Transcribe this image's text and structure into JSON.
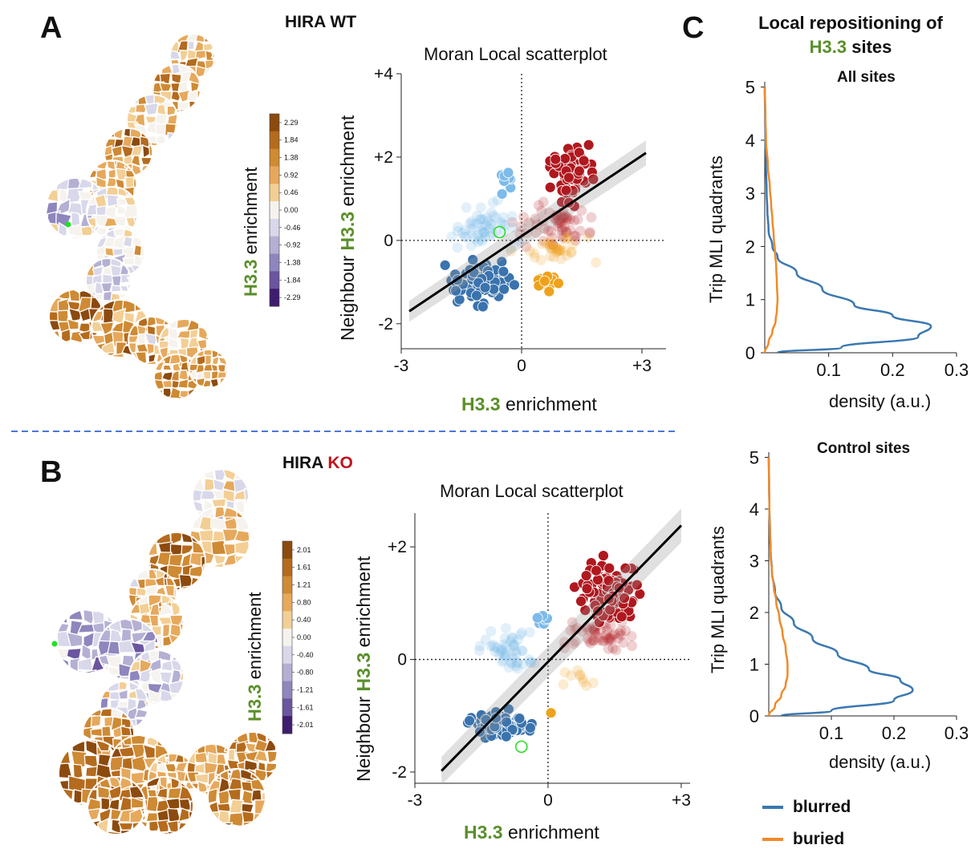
{
  "panels": {
    "A": {
      "letter": "A",
      "condition": "HIRA WT"
    },
    "B": {
      "letter": "B",
      "condition_prefix": "HIRA ",
      "condition_suffix": "KO"
    },
    "C": {
      "letter": "C",
      "title_line1": "Local repositioning of",
      "title_h33": "H3.3",
      "title_rest": " sites"
    }
  },
  "colorbar_A": {
    "title_h33": "H3.3",
    "title_rest": " enrichment",
    "ticks": [
      "2.29",
      "1.84",
      "1.38",
      "0.92",
      "0.46",
      "0.00",
      "-0.46",
      "-0.92",
      "-1.38",
      "-1.84",
      "-2.29"
    ],
    "colors": [
      "#8c4a0e",
      "#b56b1d",
      "#cf8a34",
      "#e6a95c",
      "#f3cf95",
      "#f6f2ee",
      "#d8d8ea",
      "#b4b0d4",
      "#8e86bd",
      "#6a559f",
      "#3f1d6e"
    ]
  },
  "colorbar_B": {
    "title_h33": "H3.3",
    "title_rest": " enrichment",
    "ticks": [
      "2.01",
      "1.61",
      "1.21",
      "0.80",
      "0.40",
      "0.00",
      "-0.40",
      "-0.80",
      "-1.21",
      "-1.61",
      "-2.01"
    ],
    "colors": [
      "#8c4a0e",
      "#b56b1d",
      "#cf8a34",
      "#e6a95c",
      "#f3cf95",
      "#f6f2ee",
      "#d8d8ea",
      "#b4b0d4",
      "#8e86bd",
      "#6a559f",
      "#3f1d6e"
    ]
  },
  "scatter_labels": {
    "title": "Moran Local scatterplot",
    "xlabel_h33": "H3.3",
    "xlabel_rest": " enrichment",
    "ylabel_pre": "Neighbour ",
    "ylabel_h33": "H3.3",
    "ylabel_rest": " enrichment"
  },
  "density_labels": {
    "ylabel": "Trip MLI quadrants",
    "xlabel": "density (a.u.)",
    "title_all": "All sites",
    "title_control": "Control sites",
    "legend_blurred": "blurred",
    "legend_buried": "buried"
  },
  "colors": {
    "hh": "#b0181f",
    "ll": "#3a73ad",
    "lh": "#7dbbea",
    "hl": "#eea21c",
    "blurred": "#3a78b0",
    "buried": "#f08a2a",
    "green": "#5a8f2a"
  },
  "chart_data": [
    {
      "type": "scatter",
      "title": "Moran Local scatterplot",
      "xlabel": "H3.3 enrichment",
      "ylabel": "Neighbour H3.3 enrichment",
      "xticks": [
        "-3",
        "0",
        "+3"
      ],
      "yticks": [
        "-2",
        "0",
        "+2",
        "+4"
      ],
      "xlim": [
        -3,
        3.6
      ],
      "ylim": [
        -2.6,
        4
      ],
      "regression": {
        "x": [
          -2.8,
          3.1
        ],
        "y": [
          -1.7,
          2.1
        ]
      },
      "highlight": {
        "x": -0.55,
        "y": 0.2
      }
    },
    {
      "type": "scatter",
      "title": "Moran Local scatterplot",
      "xlabel": "H3.3 enrichment",
      "ylabel": "Neighbour H3.3 enrichment",
      "xticks": [
        "-3",
        "0",
        "+3"
      ],
      "yticks": [
        "-2",
        "0",
        "+2"
      ],
      "xlim": [
        -3,
        3.2
      ],
      "ylim": [
        -2.2,
        2.6
      ],
      "regression": {
        "x": [
          -2.4,
          3.0
        ],
        "y": [
          -1.98,
          2.38
        ]
      },
      "highlight": {
        "x": -0.6,
        "y": -1.55
      }
    },
    {
      "type": "line",
      "title": "All sites",
      "xlabel": "density (a.u.)",
      "ylabel": "Trip MLI quadrants",
      "xticks": [
        "0.1",
        "0.2",
        "0.3"
      ],
      "yticks": [
        "0",
        "1",
        "2",
        "3",
        "4",
        "5"
      ],
      "xlim": [
        0,
        0.3
      ],
      "ylim": [
        0,
        5.1
      ],
      "series": [
        {
          "name": "blurred",
          "y": [
            0.0,
            0.1,
            0.3,
            0.5,
            0.7,
            0.9,
            1.2,
            1.5,
            1.8,
            2.0,
            2.3,
            2.7,
            3.0,
            3.5,
            4.0,
            4.5,
            5.0
          ],
          "x": [
            0.02,
            0.12,
            0.24,
            0.26,
            0.2,
            0.14,
            0.09,
            0.05,
            0.02,
            0.012,
            0.006,
            0.004,
            0.003,
            0.002,
            0.001,
            0.0005,
            0.0
          ]
        },
        {
          "name": "buried",
          "y": [
            0.0,
            0.2,
            0.4,
            0.6,
            0.8,
            1.0,
            1.3,
            1.6,
            1.9,
            2.2,
            2.5,
            2.8,
            3.1,
            3.5,
            4.0,
            4.5,
            5.0
          ],
          "x": [
            0.0,
            0.006,
            0.012,
            0.017,
            0.019,
            0.02,
            0.019,
            0.018,
            0.016,
            0.014,
            0.012,
            0.01,
            0.008,
            0.005,
            0.002,
            0.001,
            0.0
          ]
        }
      ]
    },
    {
      "type": "line",
      "title": "Control sites",
      "xlabel": "density (a.u.)",
      "ylabel": "Trip MLI quadrants",
      "xticks": [
        "0.1",
        "0.2",
        "0.3"
      ],
      "yticks": [
        "0",
        "1",
        "2",
        "3",
        "4",
        "5"
      ],
      "xlim": [
        0,
        0.3
      ],
      "ylim": [
        0,
        5.1
      ],
      "series": [
        {
          "name": "blurred",
          "y": [
            0.0,
            0.1,
            0.3,
            0.5,
            0.7,
            0.9,
            1.2,
            1.5,
            1.8,
            2.1,
            2.4,
            2.8,
            3.2,
            3.6,
            4.0,
            4.5,
            5.0
          ],
          "x": [
            0.02,
            0.1,
            0.2,
            0.23,
            0.21,
            0.16,
            0.11,
            0.07,
            0.04,
            0.02,
            0.01,
            0.005,
            0.003,
            0.002,
            0.001,
            0.0005,
            0.0
          ]
        },
        {
          "name": "buried",
          "y": [
            0.0,
            0.2,
            0.4,
            0.6,
            0.8,
            1.0,
            1.3,
            1.6,
            1.9,
            2.2,
            2.5,
            2.8,
            3.1,
            3.5,
            4.0,
            4.5,
            5.0
          ],
          "x": [
            0.0,
            0.01,
            0.02,
            0.027,
            0.03,
            0.03,
            0.027,
            0.022,
            0.017,
            0.012,
            0.008,
            0.005,
            0.003,
            0.002,
            0.001,
            0.0005,
            0.0
          ]
        }
      ]
    }
  ]
}
